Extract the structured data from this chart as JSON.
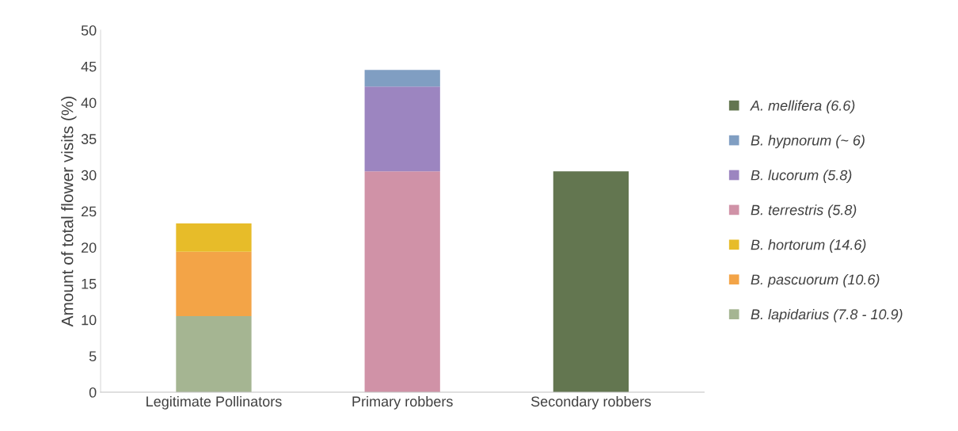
{
  "chart_data": {
    "type": "bar",
    "stacked": true,
    "ylabel": "Amount of total flower visits (%)",
    "categories": [
      "Legitimate Pollinators",
      "Primary robbers",
      "Secondary robbers"
    ],
    "ylim": [
      0,
      50
    ],
    "yticks": [
      0,
      5,
      10,
      15,
      20,
      25,
      30,
      35,
      40,
      45,
      50
    ],
    "grid": false,
    "legend": "right",
    "series": [
      {
        "name": "B. lapidarius (7.8 - 10.9)",
        "color": "#a5b592",
        "values": [
          10.5,
          null,
          null
        ]
      },
      {
        "name": "B. pascuorum (10.6)",
        "color": "#f3a447",
        "values": [
          8.9,
          null,
          null
        ]
      },
      {
        "name": "B. hortorum (14.6)",
        "color": "#e7bc29",
        "values": [
          3.9,
          null,
          null
        ]
      },
      {
        "name": "B. terrestris (5.8)",
        "color": "#d092a7",
        "values": [
          null,
          30.5,
          null
        ]
      },
      {
        "name": "B. lucorum (5.8)",
        "color": "#9c85c0",
        "values": [
          null,
          11.7,
          null
        ]
      },
      {
        "name": "B. hypnorum (~ 6)",
        "color": "#809ec2",
        "values": [
          null,
          2.3,
          null
        ]
      },
      {
        "name": "A. mellifera (6.6)",
        "color": "#637650",
        "values": [
          null,
          null,
          30.5
        ]
      }
    ]
  }
}
